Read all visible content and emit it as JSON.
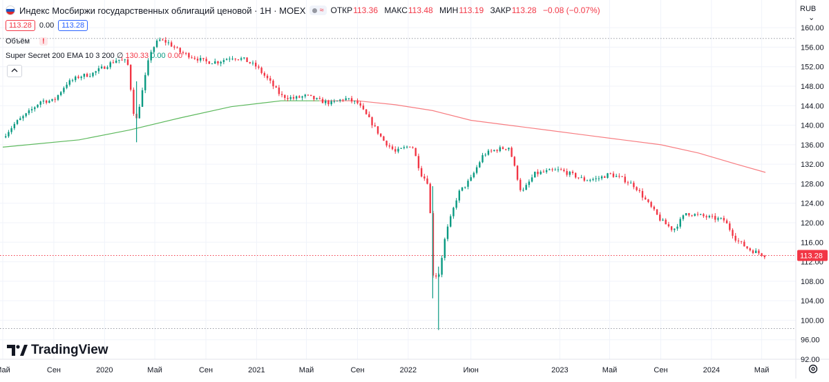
{
  "header": {
    "title": "Индекс Мосбиржи государственных облигаций ценовой · 1Н · MOEX",
    "ohlc": [
      {
        "key": "ОТКР",
        "value": "113.36"
      },
      {
        "key": "МАКС",
        "value": "113.48"
      },
      {
        "key": "МИН",
        "value": "113.19"
      },
      {
        "key": "ЗАКР",
        "value": "113.28"
      }
    ],
    "change": "−0.08 (−0.07%)",
    "pill_symbol": "≈"
  },
  "price_boxes": {
    "sell": "113.28",
    "spread": "0.00",
    "buy": "113.28"
  },
  "volume": {
    "label": "Объём",
    "warn": "!"
  },
  "indicator": {
    "name": "Super Secret 200 EMA 10 3 200",
    "symbol": "∅",
    "v1": "130.33",
    "v2": "0.00",
    "v3": "0.00"
  },
  "collapse_icon": "chevron-up-icon",
  "currency": "RUB",
  "brand": "TradingView",
  "last_price": "113.28",
  "colors": {
    "up": "#089981",
    "down": "#f23645",
    "ema_slow": "#f77c80",
    "ema_fast": "#5bb85b",
    "price_line": "#f23645",
    "grid": "#f0f3fa"
  },
  "chart_data": {
    "type": "candlestick",
    "interval": "1W",
    "y_axis": {
      "min": 92,
      "max": 162,
      "ticks": [
        92.0,
        96.0,
        100.0,
        104.0,
        108.0,
        112.0,
        116.0,
        120.0,
        124.0,
        128.0,
        132.0,
        136.0,
        140.0,
        144.0,
        148.0,
        152.0,
        156.0,
        160.0
      ]
    },
    "x_axis": {
      "domain": [
        "2019-05-01",
        "2024-05-10"
      ],
      "ticks": [
        {
          "label": "Май",
          "date": "2019-05-01"
        },
        {
          "label": "Сен",
          "date": "2019-09-01"
        },
        {
          "label": "2020",
          "date": "2020-01-01"
        },
        {
          "label": "Май",
          "date": "2020-05-01"
        },
        {
          "label": "Сен",
          "date": "2020-09-01"
        },
        {
          "label": "2021",
          "date": "2021-01-01"
        },
        {
          "label": "Май",
          "date": "2021-05-01"
        },
        {
          "label": "Сен",
          "date": "2021-09-01"
        },
        {
          "label": "2022",
          "date": "2022-01-01"
        },
        {
          "label": "Июн",
          "date": "2022-06-01"
        },
        {
          "label": "2023",
          "date": "2023-01-01"
        },
        {
          "label": "Май",
          "date": "2023-05-01"
        },
        {
          "label": "Сен",
          "date": "2023-09-01"
        },
        {
          "label": "2024",
          "date": "2024-01-01"
        },
        {
          "label": "Май",
          "date": "2024-05-01"
        }
      ]
    },
    "close_path": [
      [
        "2019-05-01",
        137.5
      ],
      [
        "2019-06-01",
        140.5
      ],
      [
        "2019-07-01",
        142.5
      ],
      [
        "2019-08-01",
        145.0
      ],
      [
        "2019-09-01",
        145.0
      ],
      [
        "2019-10-01",
        148.5
      ],
      [
        "2019-11-01",
        150.0
      ],
      [
        "2019-12-01",
        150.5
      ],
      [
        "2020-01-01",
        152.0
      ],
      [
        "2020-02-01",
        153.5
      ],
      [
        "2020-02-25",
        153.0
      ],
      [
        "2020-03-15",
        140.0
      ],
      [
        "2020-04-01",
        147.0
      ],
      [
        "2020-04-20",
        155.0
      ],
      [
        "2020-05-10",
        157.5
      ],
      [
        "2020-06-01",
        157.0
      ],
      [
        "2020-07-01",
        155.0
      ],
      [
        "2020-08-01",
        154.0
      ],
      [
        "2020-09-01",
        153.0
      ],
      [
        "2020-10-01",
        153.0
      ],
      [
        "2020-11-01",
        154.0
      ],
      [
        "2020-12-01",
        153.5
      ],
      [
        "2021-01-01",
        152.0
      ],
      [
        "2021-02-01",
        149.0
      ],
      [
        "2021-03-01",
        146.0
      ],
      [
        "2021-04-01",
        145.5
      ],
      [
        "2021-05-01",
        146.0
      ],
      [
        "2021-06-01",
        145.0
      ],
      [
        "2021-07-01",
        144.5
      ],
      [
        "2021-08-01",
        145.5
      ],
      [
        "2021-09-01",
        144.5
      ],
      [
        "2021-10-01",
        141.0
      ],
      [
        "2021-11-01",
        137.0
      ],
      [
        "2021-12-01",
        134.5
      ],
      [
        "2022-01-10",
        136.0
      ],
      [
        "2022-02-01",
        130.0
      ],
      [
        "2022-02-20",
        128.0
      ],
      [
        "2022-03-01",
        109.5
      ],
      [
        "2022-03-15",
        109.0
      ],
      [
        "2022-04-01",
        117.5
      ],
      [
        "2022-05-01",
        126.0
      ],
      [
        "2022-06-01",
        129.0
      ],
      [
        "2022-07-01",
        134.0
      ],
      [
        "2022-08-01",
        135.0
      ],
      [
        "2022-09-01",
        135.5
      ],
      [
        "2022-10-01",
        126.0
      ],
      [
        "2022-11-01",
        130.0
      ],
      [
        "2022-12-01",
        130.5
      ],
      [
        "2023-01-01",
        130.8
      ],
      [
        "2023-02-01",
        129.8
      ],
      [
        "2023-03-01",
        128.8
      ],
      [
        "2023-04-01",
        129.0
      ],
      [
        "2023-05-01",
        130.0
      ],
      [
        "2023-06-01",
        129.0
      ],
      [
        "2023-07-01",
        127.5
      ],
      [
        "2023-08-01",
        124.0
      ],
      [
        "2023-09-01",
        120.5
      ],
      [
        "2023-10-01",
        118.5
      ],
      [
        "2023-11-01",
        122.0
      ],
      [
        "2023-12-01",
        121.5
      ],
      [
        "2024-01-01",
        121.0
      ],
      [
        "2024-02-01",
        120.5
      ],
      [
        "2024-03-01",
        116.5
      ],
      [
        "2024-04-01",
        114.5
      ],
      [
        "2024-05-10",
        113.28
      ]
    ],
    "wicks": [
      {
        "date": "2020-03-18",
        "high": 149.0,
        "low": 136.5
      },
      {
        "date": "2022-03-01",
        "high": 127.5,
        "low": 104.5
      },
      {
        "date": "2022-03-15",
        "high": 111.0,
        "low": 98.0
      }
    ],
    "ema_fast": [
      [
        "2019-05-01",
        135.5
      ],
      [
        "2019-11-01",
        137.0
      ],
      [
        "2020-03-01",
        139.0
      ],
      [
        "2020-07-01",
        141.5
      ],
      [
        "2020-11-01",
        143.8
      ],
      [
        "2021-03-01",
        145.0
      ],
      [
        "2021-06-01",
        145.0
      ]
    ],
    "ema_slow": [
      [
        "2021-06-01",
        145.0
      ],
      [
        "2021-09-01",
        145.0
      ],
      [
        "2021-12-01",
        144.2
      ],
      [
        "2022-03-01",
        143.0
      ],
      [
        "2022-06-01",
        141.0
      ],
      [
        "2022-09-01",
        140.0
      ],
      [
        "2022-12-01",
        139.0
      ],
      [
        "2023-03-01",
        138.0
      ],
      [
        "2023-06-01",
        137.0
      ],
      [
        "2023-09-01",
        136.0
      ],
      [
        "2023-12-01",
        134.3
      ],
      [
        "2024-03-01",
        132.0
      ],
      [
        "2024-05-10",
        130.33
      ]
    ],
    "reference_lines": [
      {
        "value": 157.8,
        "style": "dotted",
        "color": "#9598a1"
      },
      {
        "value": 98.3,
        "style": "dotted",
        "color": "#9598a1"
      },
      {
        "value": 113.28,
        "style": "dotted",
        "color": "#f23645"
      }
    ]
  }
}
